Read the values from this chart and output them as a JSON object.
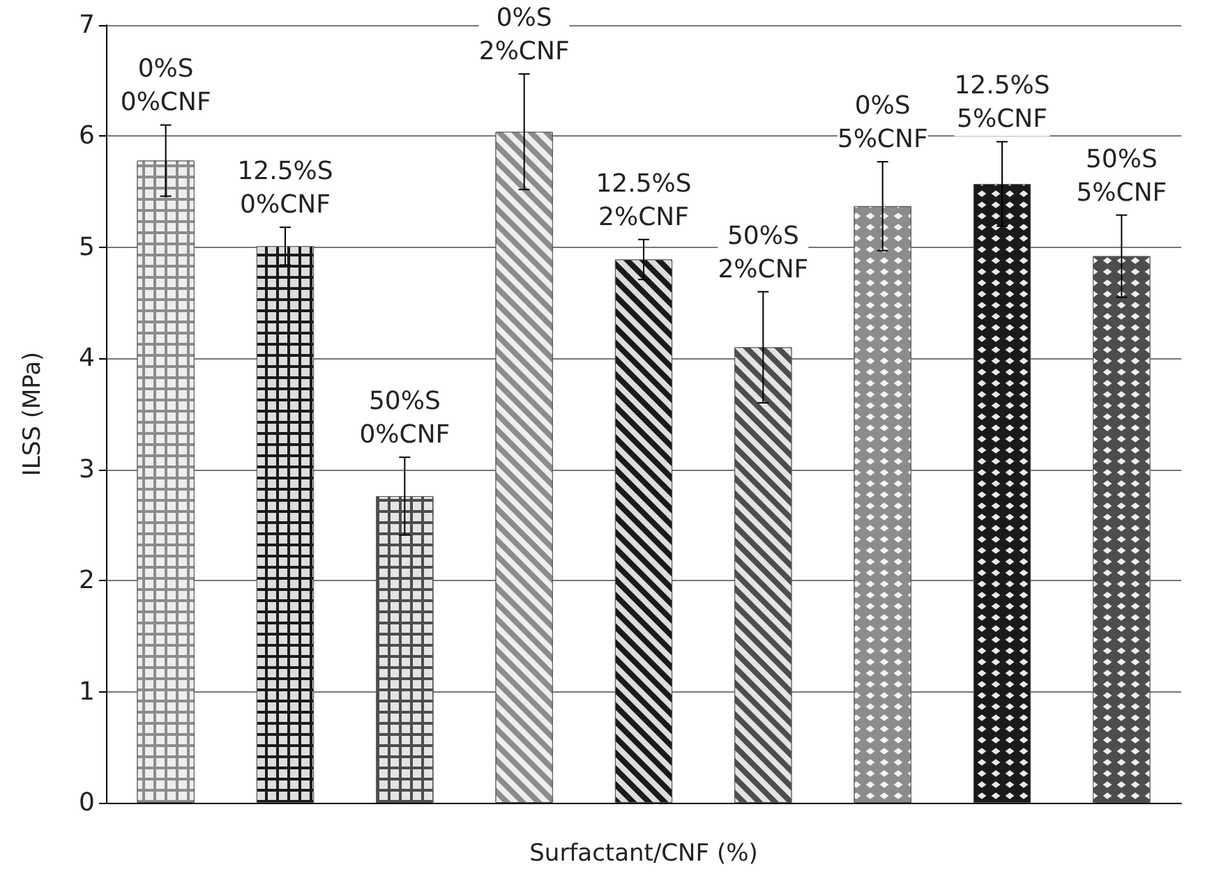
{
  "chart_data": {
    "type": "bar",
    "xlabel": "Surfactant/CNF (%)",
    "ylabel": "ILSS (MPa)",
    "categories": [
      "0%S\n0%CNF",
      "12.5%S\n0%CNF",
      "50%S\n0%CNF",
      "0%S\n2%CNF",
      "12.5%S\n2%CNF",
      "50%S\n2%CNF",
      "0%S\n5%CNF",
      "12.5%S\n5%CNF",
      "50%S\n5%CNF"
    ],
    "values": [
      5.78,
      5.01,
      2.76,
      6.04,
      4.89,
      4.1,
      5.37,
      5.57,
      4.92
    ],
    "errors": [
      0.32,
      0.17,
      0.35,
      0.52,
      0.18,
      0.5,
      0.4,
      0.38,
      0.37
    ],
    "colors": [
      "#8c8c8c",
      "#1a1a1a",
      "#4d4d4d",
      "#8c8c8c",
      "#1a1a1a",
      "#4d4d4d",
      "#8c8c8c",
      "#1a1a1a",
      "#4d4d4d"
    ],
    "ylim": [
      0,
      7
    ],
    "yticks": [
      0,
      1,
      2,
      3,
      4,
      5,
      6,
      7
    ],
    "grid": "y"
  }
}
